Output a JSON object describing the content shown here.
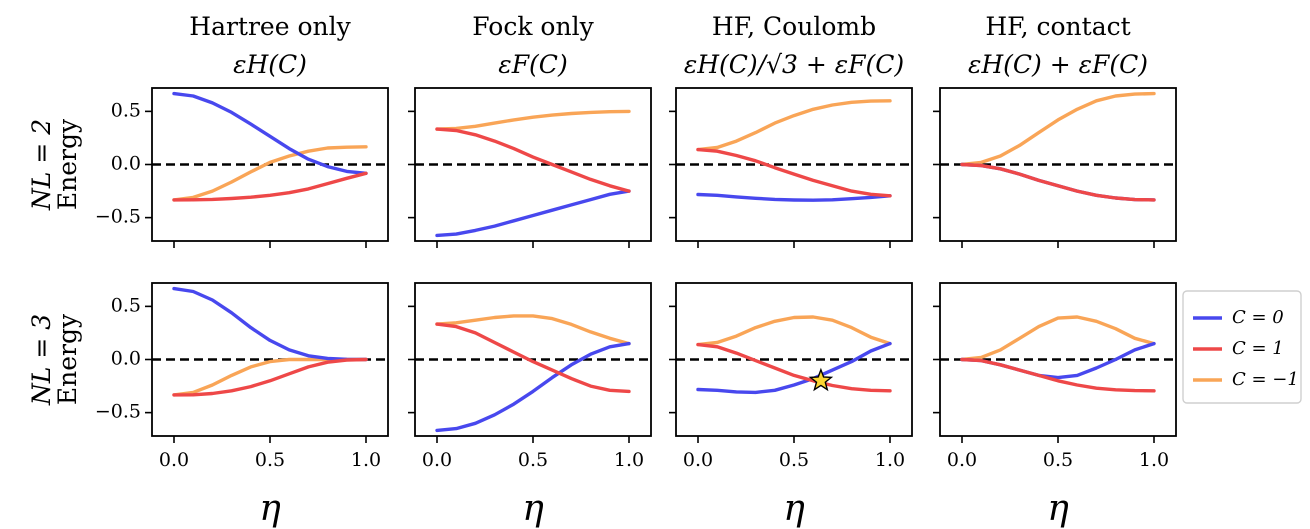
{
  "chart_data": [
    {
      "row": 0,
      "col": 0,
      "type": "line",
      "title_line1": "Hartree only",
      "title_line2": "εH(C)",
      "row_label": [
        "NL = 2",
        "Energy"
      ],
      "xlim": [
        0,
        1
      ],
      "ylim": [
        -0.72,
        0.72
      ],
      "series": [
        {
          "name": "C = 0",
          "x": [
            0,
            0.1,
            0.2,
            0.3,
            0.4,
            0.5,
            0.6,
            0.7,
            0.8,
            0.9,
            1.0
          ],
          "y": [
            0.667,
            0.645,
            0.58,
            0.49,
            0.38,
            0.265,
            0.15,
            0.05,
            -0.02,
            -0.065,
            -0.083
          ]
        },
        {
          "name": "C = 1",
          "x": [
            0,
            0.1,
            0.2,
            0.3,
            0.4,
            0.5,
            0.6,
            0.7,
            0.8,
            0.9,
            1.0
          ],
          "y": [
            -0.333,
            -0.332,
            -0.328,
            -0.32,
            -0.308,
            -0.29,
            -0.265,
            -0.23,
            -0.18,
            -0.13,
            -0.083
          ]
        },
        {
          "name": "C = -1",
          "x": [
            0,
            0.1,
            0.2,
            0.3,
            0.4,
            0.5,
            0.6,
            0.7,
            0.8,
            0.9,
            1.0
          ],
          "y": [
            -0.333,
            -0.31,
            -0.25,
            -0.165,
            -0.07,
            0.02,
            0.08,
            0.125,
            0.155,
            0.163,
            0.167
          ]
        }
      ]
    },
    {
      "row": 0,
      "col": 1,
      "type": "line",
      "title_line1": "Fock only",
      "title_line2": "εF(C)",
      "xlim": [
        0,
        1
      ],
      "ylim": [
        -0.72,
        0.72
      ],
      "series": [
        {
          "name": "C = 0",
          "x": [
            0,
            0.1,
            0.2,
            0.3,
            0.4,
            0.5,
            0.6,
            0.7,
            0.8,
            0.9,
            1.0
          ],
          "y": [
            -0.667,
            -0.655,
            -0.62,
            -0.58,
            -0.53,
            -0.48,
            -0.43,
            -0.38,
            -0.33,
            -0.28,
            -0.25
          ]
        },
        {
          "name": "C = 1",
          "x": [
            0,
            0.1,
            0.2,
            0.3,
            0.4,
            0.5,
            0.6,
            0.7,
            0.8,
            0.9,
            1.0
          ],
          "y": [
            0.333,
            0.32,
            0.28,
            0.22,
            0.15,
            0.07,
            0.0,
            -0.07,
            -0.14,
            -0.2,
            -0.25
          ]
        },
        {
          "name": "C = -1",
          "x": [
            0,
            0.1,
            0.2,
            0.3,
            0.4,
            0.5,
            0.6,
            0.7,
            0.8,
            0.9,
            1.0
          ],
          "y": [
            0.333,
            0.34,
            0.36,
            0.39,
            0.42,
            0.445,
            0.465,
            0.48,
            0.49,
            0.497,
            0.5
          ]
        }
      ]
    },
    {
      "row": 0,
      "col": 2,
      "type": "line",
      "title_line1": "HF, Coulomb",
      "title_line2": "εH(C)/√3 + εF(C)",
      "xlim": [
        0,
        1
      ],
      "ylim": [
        -0.72,
        0.72
      ],
      "series": [
        {
          "name": "C = 0",
          "x": [
            0,
            0.1,
            0.2,
            0.3,
            0.4,
            0.5,
            0.6,
            0.7,
            0.8,
            0.9,
            1.0
          ],
          "y": [
            -0.282,
            -0.29,
            -0.305,
            -0.318,
            -0.328,
            -0.334,
            -0.336,
            -0.332,
            -0.322,
            -0.31,
            -0.295
          ]
        },
        {
          "name": "C = 1",
          "x": [
            0,
            0.1,
            0.2,
            0.3,
            0.4,
            0.5,
            0.6,
            0.7,
            0.8,
            0.9,
            1.0
          ],
          "y": [
            0.14,
            0.125,
            0.085,
            0.035,
            -0.03,
            -0.09,
            -0.15,
            -0.2,
            -0.25,
            -0.28,
            -0.295
          ]
        },
        {
          "name": "C = -1",
          "x": [
            0,
            0.1,
            0.2,
            0.3,
            0.4,
            0.5,
            0.6,
            0.7,
            0.8,
            0.9,
            1.0
          ],
          "y": [
            0.14,
            0.16,
            0.22,
            0.3,
            0.39,
            0.46,
            0.52,
            0.56,
            0.585,
            0.597,
            0.6
          ]
        }
      ]
    },
    {
      "row": 0,
      "col": 3,
      "type": "line",
      "title_line1": "HF, contact",
      "title_line2": "εH(C) + εF(C)",
      "xlim": [
        0,
        1
      ],
      "ylim": [
        -0.72,
        0.72
      ],
      "series": [
        {
          "name": "C = 0",
          "x": [
            0,
            0.1,
            0.2,
            0.3,
            0.4,
            0.5,
            0.6,
            0.7,
            0.8,
            0.9,
            1.0
          ],
          "y": [
            0.0,
            -0.01,
            -0.04,
            -0.09,
            -0.15,
            -0.2,
            -0.25,
            -0.29,
            -0.315,
            -0.33,
            -0.333
          ]
        },
        {
          "name": "C = 1",
          "x": [
            0,
            0.1,
            0.2,
            0.3,
            0.4,
            0.5,
            0.6,
            0.7,
            0.8,
            0.9,
            1.0
          ],
          "y": [
            0.0,
            -0.01,
            -0.04,
            -0.09,
            -0.15,
            -0.2,
            -0.25,
            -0.29,
            -0.315,
            -0.33,
            -0.333
          ]
        },
        {
          "name": "C = -1",
          "x": [
            0,
            0.1,
            0.2,
            0.3,
            0.4,
            0.5,
            0.6,
            0.7,
            0.8,
            0.9,
            1.0
          ],
          "y": [
            0.0,
            0.02,
            0.08,
            0.18,
            0.3,
            0.42,
            0.52,
            0.6,
            0.645,
            0.663,
            0.667
          ]
        }
      ]
    },
    {
      "row": 1,
      "col": 0,
      "type": "line",
      "row_label": [
        "NL = 3",
        "Energy"
      ],
      "xlabel": "η",
      "xlim": [
        0,
        1
      ],
      "ylim": [
        -0.72,
        0.72
      ],
      "series": [
        {
          "name": "C = 0",
          "x": [
            0,
            0.1,
            0.2,
            0.3,
            0.4,
            0.5,
            0.6,
            0.7,
            0.8,
            0.9,
            1.0
          ],
          "y": [
            0.667,
            0.64,
            0.56,
            0.44,
            0.3,
            0.18,
            0.09,
            0.035,
            0.01,
            0.002,
            0.0
          ]
        },
        {
          "name": "C = 1",
          "x": [
            0,
            0.1,
            0.2,
            0.3,
            0.4,
            0.5,
            0.6,
            0.7,
            0.8,
            0.9,
            1.0
          ],
          "y": [
            -0.333,
            -0.332,
            -0.32,
            -0.295,
            -0.255,
            -0.2,
            -0.135,
            -0.07,
            -0.025,
            -0.005,
            0.0
          ]
        },
        {
          "name": "C = -1",
          "x": [
            0,
            0.1,
            0.2,
            0.3,
            0.4,
            0.5,
            0.6,
            0.7,
            0.8,
            0.9,
            1.0
          ],
          "y": [
            -0.333,
            -0.31,
            -0.24,
            -0.15,
            -0.07,
            -0.02,
            0.0,
            0.0,
            0.0,
            0.0,
            0.0
          ]
        }
      ]
    },
    {
      "row": 1,
      "col": 1,
      "type": "line",
      "xlabel": "η",
      "xlim": [
        0,
        1
      ],
      "ylim": [
        -0.72,
        0.72
      ],
      "series": [
        {
          "name": "C = 0",
          "x": [
            0,
            0.1,
            0.2,
            0.3,
            0.4,
            0.5,
            0.6,
            0.7,
            0.8,
            0.9,
            1.0
          ],
          "y": [
            -0.667,
            -0.65,
            -0.6,
            -0.52,
            -0.42,
            -0.3,
            -0.17,
            -0.05,
            0.05,
            0.12,
            0.15
          ]
        },
        {
          "name": "C = 1",
          "x": [
            0,
            0.1,
            0.2,
            0.3,
            0.4,
            0.5,
            0.6,
            0.7,
            0.8,
            0.9,
            1.0
          ],
          "y": [
            0.333,
            0.31,
            0.25,
            0.16,
            0.07,
            -0.02,
            -0.1,
            -0.18,
            -0.25,
            -0.29,
            -0.3
          ]
        },
        {
          "name": "C = -1",
          "x": [
            0,
            0.1,
            0.2,
            0.3,
            0.4,
            0.5,
            0.6,
            0.7,
            0.8,
            0.9,
            1.0
          ],
          "y": [
            0.333,
            0.345,
            0.37,
            0.395,
            0.41,
            0.41,
            0.385,
            0.33,
            0.26,
            0.2,
            0.15
          ]
        }
      ]
    },
    {
      "row": 1,
      "col": 2,
      "type": "line",
      "xlabel": "η",
      "xlim": [
        0,
        1
      ],
      "ylim": [
        -0.72,
        0.72
      ],
      "series": [
        {
          "name": "C = 0",
          "x": [
            0,
            0.1,
            0.2,
            0.3,
            0.4,
            0.5,
            0.6,
            0.7,
            0.8,
            0.9,
            1.0
          ],
          "y": [
            -0.282,
            -0.29,
            -0.305,
            -0.31,
            -0.29,
            -0.24,
            -0.18,
            -0.1,
            -0.02,
            0.08,
            0.15
          ]
        },
        {
          "name": "C = 1",
          "x": [
            0,
            0.1,
            0.2,
            0.3,
            0.4,
            0.5,
            0.6,
            0.7,
            0.8,
            0.9,
            1.0
          ],
          "y": [
            0.14,
            0.12,
            0.06,
            -0.01,
            -0.08,
            -0.15,
            -0.2,
            -0.245,
            -0.275,
            -0.29,
            -0.295
          ]
        },
        {
          "name": "C = -1",
          "x": [
            0,
            0.1,
            0.2,
            0.3,
            0.4,
            0.5,
            0.6,
            0.7,
            0.8,
            0.9,
            1.0
          ],
          "y": [
            0.14,
            0.16,
            0.22,
            0.3,
            0.36,
            0.395,
            0.4,
            0.37,
            0.3,
            0.21,
            0.15
          ]
        }
      ],
      "marker": {
        "shape": "star",
        "x": 0.64,
        "y": -0.2,
        "color": "#fbd533"
      }
    },
    {
      "row": 1,
      "col": 3,
      "type": "line",
      "xlabel": "η",
      "xlim": [
        0,
        1
      ],
      "ylim": [
        -0.72,
        0.72
      ],
      "series": [
        {
          "name": "C = 0",
          "x": [
            0,
            0.1,
            0.2,
            0.3,
            0.4,
            0.5,
            0.6,
            0.7,
            0.8,
            0.9,
            1.0
          ],
          "y": [
            0.0,
            -0.01,
            -0.05,
            -0.1,
            -0.15,
            -0.17,
            -0.15,
            -0.08,
            0.0,
            0.09,
            0.15
          ]
        },
        {
          "name": "C = 1",
          "x": [
            0,
            0.1,
            0.2,
            0.3,
            0.4,
            0.5,
            0.6,
            0.7,
            0.8,
            0.9,
            1.0
          ],
          "y": [
            0.0,
            -0.01,
            -0.05,
            -0.1,
            -0.15,
            -0.2,
            -0.24,
            -0.27,
            -0.285,
            -0.293,
            -0.295
          ]
        },
        {
          "name": "C = -1",
          "x": [
            0,
            0.1,
            0.2,
            0.3,
            0.4,
            0.5,
            0.6,
            0.7,
            0.8,
            0.9,
            1.0
          ],
          "y": [
            0.0,
            0.02,
            0.09,
            0.2,
            0.31,
            0.39,
            0.4,
            0.36,
            0.29,
            0.2,
            0.15
          ]
        }
      ]
    }
  ],
  "shared": {
    "yticks": [
      -0.5,
      0.0,
      0.5
    ],
    "ytick_labels": [
      "−0.5",
      "0.0",
      "0.5"
    ],
    "xticks": [
      0,
      0.5,
      1.0
    ],
    "xtick_labels": [
      "0.0",
      "0.5",
      "1.0"
    ],
    "reference_line": {
      "y": 0,
      "style": "dashed",
      "color": "#000000"
    },
    "colors": {
      "C = 0": "#4848ee",
      "C = 1": "#ee4848",
      "C = -1": "#f9a557"
    }
  },
  "legend": {
    "placement": "right of bottom row",
    "entries": [
      {
        "label": "C = 0",
        "color": "#4848ee"
      },
      {
        "label": "C = 1",
        "color": "#ee4848"
      },
      {
        "label": "C = −1",
        "color": "#f9a557"
      }
    ]
  }
}
